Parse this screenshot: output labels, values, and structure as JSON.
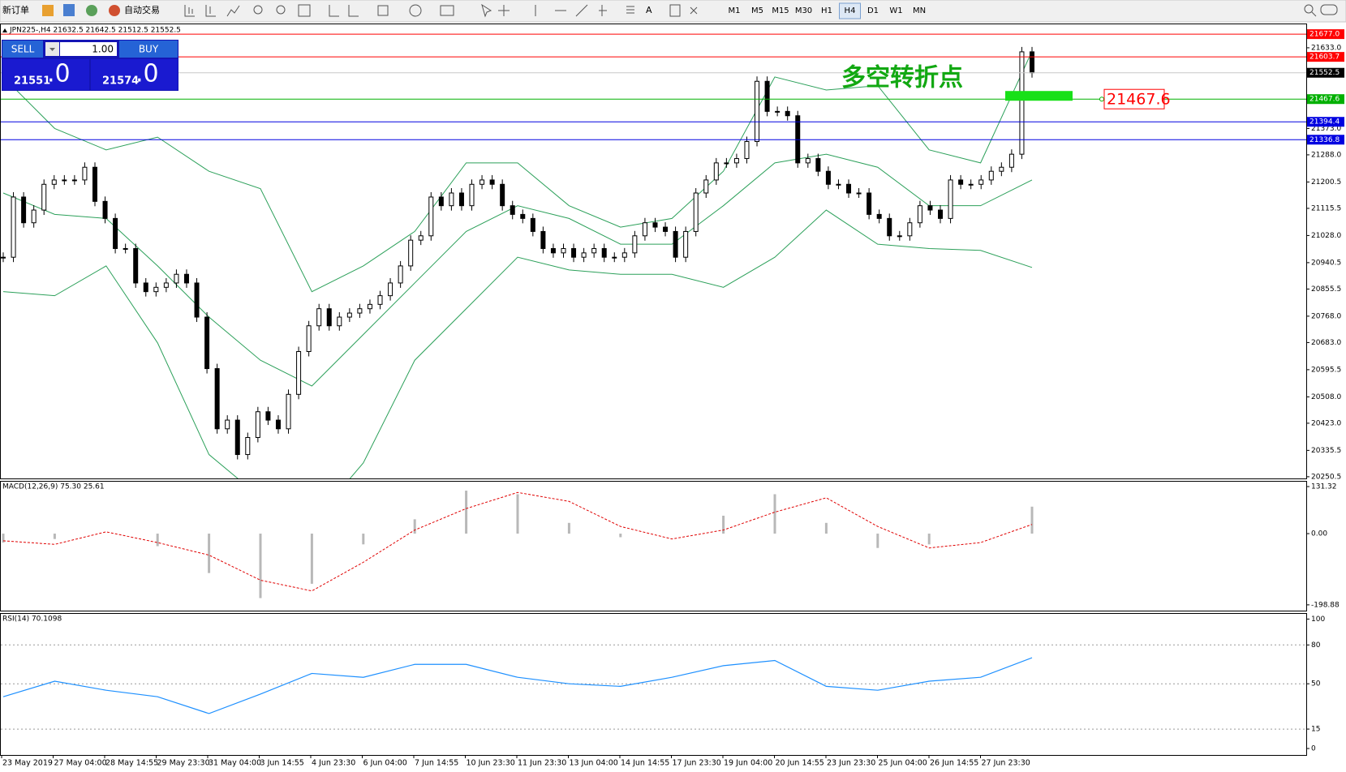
{
  "toolbar": {
    "new_order": "新订单",
    "auto_trading": "自动交易",
    "text_tool": "A",
    "timeframes": [
      "M1",
      "M5",
      "M15",
      "M30",
      "H1",
      "H4",
      "D1",
      "W1",
      "MN"
    ],
    "active_timeframe": "H4"
  },
  "trade_panel": {
    "sell": "SELL",
    "buy": "BUY",
    "lots": "1.00",
    "bid_main": "21551",
    "bid_pips": ".0",
    "ask_main": "21574",
    "ask_pips": ".0"
  },
  "chart_data": [
    {
      "type": "candlestick",
      "title": "JPN225-,H4  21632.5 21642.5 21512.5 21552.5",
      "close": [
        20958,
        21152,
        21069,
        21110,
        21193,
        21207,
        21207,
        21207,
        21248,
        21138,
        21083,
        20986,
        20986,
        20875,
        20847,
        20861,
        20875,
        20903,
        20875,
        20765,
        20599,
        20405,
        20433,
        20322,
        20377,
        20460,
        20433,
        20405,
        20516,
        20654,
        20737,
        20792,
        20737,
        20765,
        20778,
        20792,
        20806,
        20834,
        20875,
        20930,
        21013,
        21027,
        21152,
        21124,
        21165,
        21124,
        21193,
        21207,
        21193,
        21124,
        21096,
        21083,
        21041,
        20986,
        20972,
        20986,
        20958,
        20972,
        20986,
        20958,
        20958,
        20972,
        21027,
        21069,
        21055,
        21041,
        20958,
        21041,
        21165,
        21207,
        21262,
        21262,
        21276,
        21331,
        21525,
        21428,
        21428,
        21414,
        21262,
        21276,
        21235,
        21193,
        21193,
        21165,
        21165,
        21096,
        21083,
        21027,
        21027,
        21069,
        21124,
        21110,
        21083,
        21207,
        21193,
        21193,
        21207,
        21235,
        21248,
        21290,
        21620,
        21552.5
      ],
      "bands": {
        "color": "#2ca05a",
        "upper": [
          21539,
          21373,
          21304,
          21345,
          21235,
          21179,
          20847,
          20930,
          21041,
          21262,
          21262,
          21124,
          21055,
          21083,
          21235,
          21539,
          21497,
          21511,
          21304,
          21262,
          21622
        ],
        "middle": [
          21165,
          21096,
          21083,
          20930,
          20765,
          20626,
          20543,
          20709,
          20875,
          21041,
          21124,
          21083,
          21000,
          21000,
          21124,
          21262,
          21290,
          21248,
          21124,
          21124,
          21207
        ],
        "lower": [
          20847,
          20834,
          20930,
          20682,
          20322,
          20184,
          20101,
          20295,
          20626,
          20792,
          20958,
          20917,
          20903,
          20903,
          20861,
          20958,
          21110,
          21000,
          20986,
          20980,
          20925
        ]
      },
      "ylim": [
        20245,
        21706
      ],
      "yticks": [
        {
          "value": 21633,
          "label": "21633.0"
        },
        {
          "value": 21373,
          "label": "21373.0"
        },
        {
          "value": 21288,
          "label": "21288.0"
        },
        21200.5,
        21115.5,
        {
          "value": 21028,
          "label": "21028.0"
        },
        20940.5,
        20855.5,
        {
          "value": 20768,
          "label": "20768.0"
        },
        {
          "value": 20683,
          "label": "20683.0"
        },
        20595.5,
        {
          "value": 20508,
          "label": "20508.0"
        },
        {
          "value": 20423,
          "label": "20423.0"
        },
        20335.5,
        20250.5
      ],
      "levels": [
        {
          "value": 21677,
          "label": "21677.0",
          "color": "#ff0000"
        },
        {
          "value": 21603.7,
          "label": "21603.7",
          "color": "#ff0000"
        },
        {
          "value": 21552.5,
          "label": "21552.5",
          "color": "#000000",
          "line_color": "#c8c8c8"
        },
        {
          "value": 21467.6,
          "label": "21467.6",
          "color": "#00b000"
        },
        {
          "value": 21394.4,
          "label": "21394.4",
          "color": "#0000e0"
        },
        {
          "value": 21336.8,
          "label": "21336.8",
          "color": "#0000e0"
        }
      ],
      "annotation": "多空转折点",
      "x_labels": [
        "23 May 2019",
        "27 May 04:00",
        "28 May 14:55",
        "29 May 23:30",
        "31 May 04:00",
        "3 Jun 14:55",
        "4 Jun 23:30",
        "6 Jun 04:00",
        "7 Jun 14:55",
        "10 Jun 23:30",
        "11 Jun 23:30",
        "13 Jun 04:00",
        "14 Jun 14:55",
        "17 Jun 23:30",
        "19 Jun 04:00",
        "20 Jun 14:55",
        "23 Jun 23:30",
        "25 Jun 04:00",
        "26 Jun 14:55",
        "27 Jun 23:30"
      ]
    },
    {
      "type": "macd",
      "title": "MACD(12,26,9) 75.30 25.61",
      "histogram": {
        "color": "#b8b8b8",
        "values": [
          -25,
          -15,
          0,
          -35,
          -110,
          -180,
          -140,
          -30,
          40,
          120,
          110,
          30,
          -10,
          0,
          50,
          110,
          30,
          -40,
          -30,
          0,
          75.3
        ]
      },
      "signal": {
        "color": "#e00000",
        "values": [
          -20,
          -30,
          5,
          -25,
          -60,
          -130,
          -160,
          -80,
          10,
          70,
          115,
          90,
          20,
          -15,
          10,
          60,
          100,
          20,
          -40,
          -25,
          25.61
        ]
      },
      "ylim": [
        -215,
        145
      ],
      "yticks": [
        131.32,
        {
          "value": 0,
          "label": "0.00"
        },
        -198.88
      ]
    },
    {
      "type": "line",
      "title": "RSI(14) 70.1098",
      "color": "#1e90ff",
      "values": [
        40,
        52,
        45,
        40,
        27,
        42,
        58,
        55,
        65,
        65,
        55,
        50,
        48,
        55,
        64,
        68,
        48,
        45,
        52,
        55,
        70.1098
      ],
      "ylim": [
        -5,
        104
      ],
      "yticks": [
        100,
        80,
        50,
        15,
        0
      ],
      "grid": true
    }
  ]
}
